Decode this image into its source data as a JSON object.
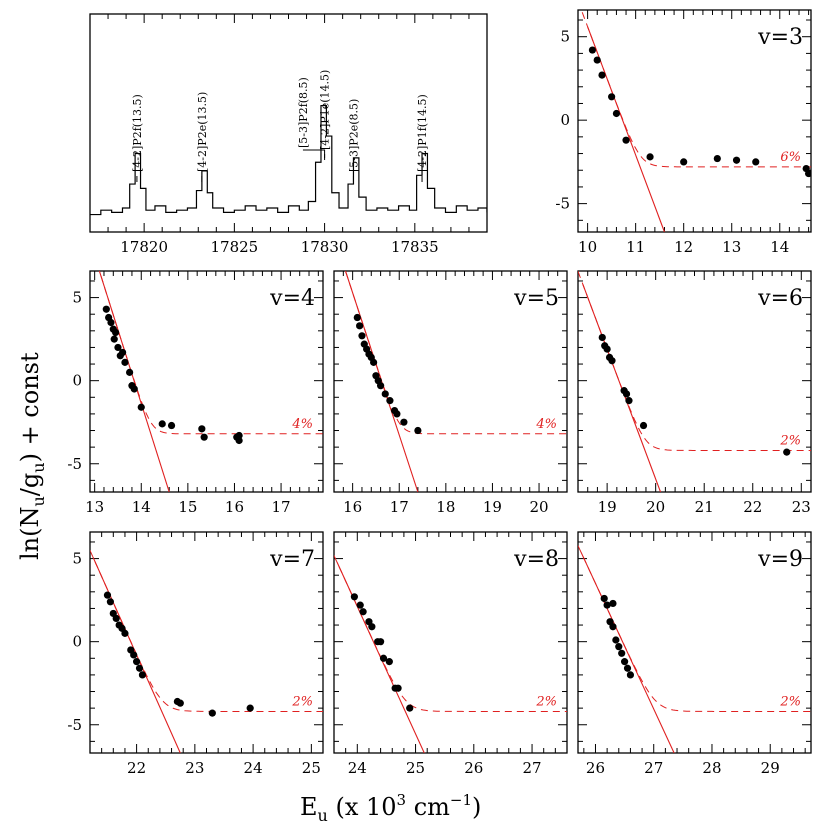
{
  "figure": {
    "xlabel": "E",
    "xlabel_sub": "u",
    "xlabel_rest": " (x 10",
    "xlabel_sup": "3",
    "xlabel_unit": " cm",
    "xlabel_unit_sup": "−1",
    "xlabel_close": ")",
    "ylabel_a": "ln(N",
    "ylabel_sub1": "u",
    "ylabel_b": "/g",
    "ylabel_sub2": "u",
    "ylabel_c": ") + const"
  },
  "chart_data": [
    {
      "type": "line",
      "panel": "spectrum",
      "xlim": [
        17817,
        17839
      ],
      "ylim": [
        0,
        1
      ],
      "xticks": [
        17820,
        17825,
        17830,
        17835
      ],
      "line_labels": [
        {
          "text": "[4-2]P2f(13.5)",
          "x": 17819.6
        },
        {
          "text": "[4-2]P2e(13.5)",
          "x": 17823.2
        },
        {
          "text": "[5-3]P2f(8.5)",
          "x": 17828.8
        },
        {
          "text": "[4-2]P1e(14.5)",
          "x": 17830.0
        },
        {
          "text": "[5-3]P2e(8.5)",
          "x": 17831.6
        },
        {
          "text": "[4-2]P1f(14.5)",
          "x": 17835.4
        }
      ],
      "spectrum_x": [
        17817,
        17817.6,
        17818.2,
        17818.8,
        17819.2,
        17819.5,
        17819.8,
        17820.1,
        17820.6,
        17821.2,
        17821.8,
        17822.4,
        17822.9,
        17823.2,
        17823.5,
        17823.8,
        17824.4,
        17825,
        17825.6,
        17826.2,
        17826.8,
        17827.4,
        17828,
        17828.6,
        17829.1,
        17829.5,
        17829.8,
        17830.1,
        17830.4,
        17830.8,
        17831.3,
        17831.6,
        17831.9,
        17832.3,
        17832.9,
        17833.5,
        17834.1,
        17834.7,
        17835.1,
        17835.4,
        17835.7,
        17836.1,
        17836.7,
        17837.3,
        17837.9,
        17838.5,
        17839
      ],
      "spectrum_y": [
        0.08,
        0.1,
        0.09,
        0.11,
        0.22,
        0.36,
        0.2,
        0.1,
        0.12,
        0.09,
        0.1,
        0.11,
        0.19,
        0.28,
        0.18,
        0.11,
        0.09,
        0.1,
        0.12,
        0.1,
        0.11,
        0.09,
        0.12,
        0.1,
        0.14,
        0.32,
        0.58,
        0.44,
        0.18,
        0.11,
        0.22,
        0.34,
        0.16,
        0.1,
        0.11,
        0.1,
        0.12,
        0.1,
        0.26,
        0.36,
        0.2,
        0.11,
        0.09,
        0.12,
        0.1,
        0.11,
        0.09
      ]
    },
    {
      "type": "scatter",
      "panel": "v3",
      "label": "v=3",
      "pct": "6%",
      "xlim": [
        9.8,
        14.65
      ],
      "ylim": [
        -6.7,
        6.6
      ],
      "xticks": [
        10,
        11,
        12,
        13,
        14
      ],
      "yticks": [
        -5,
        0,
        5
      ],
      "fit_line": [
        [
          10.0,
          5.6
        ],
        [
          11.6,
          -6.7
        ]
      ],
      "plateau": -2.8,
      "points": [
        [
          10.1,
          4.2
        ],
        [
          10.2,
          3.6
        ],
        [
          10.3,
          2.7
        ],
        [
          10.5,
          1.4
        ],
        [
          10.6,
          0.4
        ],
        [
          10.8,
          -1.2
        ],
        [
          11.3,
          -2.2
        ],
        [
          12.0,
          -2.5
        ],
        [
          12.7,
          -2.3
        ],
        [
          13.1,
          -2.4
        ],
        [
          13.5,
          -2.5
        ],
        [
          14.55,
          -2.9
        ],
        [
          14.6,
          -3.2
        ]
      ]
    },
    {
      "type": "scatter",
      "panel": "v4",
      "label": "v=4",
      "pct": "4%",
      "xlim": [
        12.9,
        17.9
      ],
      "ylim": [
        -6.7,
        6.6
      ],
      "xticks": [
        13,
        14,
        15,
        16,
        17
      ],
      "yticks": [
        -5,
        0,
        5
      ],
      "fit_line": [
        [
          13.0,
          7.5
        ],
        [
          14.6,
          -6.7
        ]
      ],
      "plateau": -3.2,
      "points": [
        [
          13.25,
          4.3
        ],
        [
          13.3,
          3.8
        ],
        [
          13.35,
          3.5
        ],
        [
          13.4,
          3.1
        ],
        [
          13.42,
          2.5
        ],
        [
          13.45,
          2.9
        ],
        [
          13.5,
          2.0
        ],
        [
          13.55,
          1.5
        ],
        [
          13.6,
          1.7
        ],
        [
          13.65,
          1.1
        ],
        [
          13.75,
          0.5
        ],
        [
          13.8,
          -0.3
        ],
        [
          13.85,
          -0.5
        ],
        [
          14.0,
          -1.6
        ],
        [
          14.45,
          -2.6
        ],
        [
          14.65,
          -2.7
        ],
        [
          15.3,
          -2.9
        ],
        [
          15.35,
          -3.4
        ],
        [
          16.05,
          -3.4
        ],
        [
          16.1,
          -3.3
        ],
        [
          16.1,
          -3.6
        ]
      ]
    },
    {
      "type": "scatter",
      "panel": "v5",
      "label": "v=5",
      "pct": "4%",
      "xlim": [
        15.6,
        20.6
      ],
      "ylim": [
        -6.7,
        6.6
      ],
      "xticks": [
        16,
        17,
        18,
        19,
        20
      ],
      "yticks": [
        -5,
        0,
        5
      ],
      "fit_line": [
        [
          15.8,
          7.0
        ],
        [
          17.4,
          -6.7
        ]
      ],
      "plateau": -3.2,
      "points": [
        [
          16.1,
          3.8
        ],
        [
          16.15,
          3.3
        ],
        [
          16.2,
          2.7
        ],
        [
          16.25,
          2.2
        ],
        [
          16.3,
          1.9
        ],
        [
          16.35,
          1.6
        ],
        [
          16.4,
          1.4
        ],
        [
          16.45,
          1.1
        ],
        [
          16.5,
          0.3
        ],
        [
          16.55,
          0.0
        ],
        [
          16.6,
          -0.3
        ],
        [
          16.7,
          -0.8
        ],
        [
          16.8,
          -1.2
        ],
        [
          16.9,
          -1.8
        ],
        [
          16.95,
          -2.0
        ],
        [
          17.1,
          -2.5
        ],
        [
          17.4,
          -3.0
        ]
      ]
    },
    {
      "type": "scatter",
      "panel": "v6",
      "label": "v=6",
      "pct": "2%",
      "xlim": [
        18.4,
        23.2
      ],
      "ylim": [
        -6.7,
        6.6
      ],
      "xticks": [
        19,
        20,
        21,
        22,
        23
      ],
      "yticks": [
        -5,
        0,
        5
      ],
      "fit_line": [
        [
          18.5,
          5.8
        ],
        [
          20.1,
          -6.7
        ]
      ],
      "plateau": -4.2,
      "points": [
        [
          18.9,
          2.6
        ],
        [
          18.95,
          2.1
        ],
        [
          19.0,
          1.9
        ],
        [
          19.05,
          1.4
        ],
        [
          19.1,
          1.2
        ],
        [
          19.35,
          -0.6
        ],
        [
          19.4,
          -0.8
        ],
        [
          19.45,
          -1.2
        ],
        [
          19.75,
          -2.7
        ],
        [
          22.7,
          -4.3
        ]
      ]
    },
    {
      "type": "scatter",
      "panel": "v7",
      "label": "v=7",
      "pct": "2%",
      "xlim": [
        21.2,
        25.2
      ],
      "ylim": [
        -6.7,
        6.6
      ],
      "xticks": [
        22,
        23,
        24,
        25
      ],
      "yticks": [
        -5,
        0,
        5
      ],
      "fit_line": [
        [
          21.25,
          5.1
        ],
        [
          22.75,
          -6.7
        ]
      ],
      "plateau": -4.2,
      "points": [
        [
          21.5,
          2.8
        ],
        [
          21.55,
          2.4
        ],
        [
          21.6,
          1.7
        ],
        [
          21.65,
          1.4
        ],
        [
          21.7,
          1.0
        ],
        [
          21.75,
          0.8
        ],
        [
          21.8,
          0.5
        ],
        [
          21.9,
          -0.5
        ],
        [
          21.95,
          -0.8
        ],
        [
          22.0,
          -1.2
        ],
        [
          22.05,
          -1.6
        ],
        [
          22.1,
          -2.0
        ],
        [
          22.7,
          -3.6
        ],
        [
          22.75,
          -3.7
        ],
        [
          23.3,
          -4.3
        ],
        [
          23.95,
          -4.0
        ]
      ]
    },
    {
      "type": "scatter",
      "panel": "v8",
      "label": "v=8",
      "pct": "2%",
      "xlim": [
        23.6,
        27.6
      ],
      "ylim": [
        -6.7,
        6.6
      ],
      "xticks": [
        24,
        25,
        26,
        27
      ],
      "yticks": [
        -5,
        0,
        5
      ],
      "fit_line": [
        [
          23.65,
          4.8
        ],
        [
          25.15,
          -6.7
        ]
      ],
      "plateau": -4.2,
      "points": [
        [
          23.95,
          2.7
        ],
        [
          24.05,
          2.2
        ],
        [
          24.1,
          1.8
        ],
        [
          24.2,
          1.2
        ],
        [
          24.25,
          0.9
        ],
        [
          24.35,
          0.0
        ],
        [
          24.4,
          0.0
        ],
        [
          24.45,
          -1.0
        ],
        [
          24.55,
          -1.2
        ],
        [
          24.65,
          -2.8
        ],
        [
          24.7,
          -2.8
        ],
        [
          24.9,
          -4.0
        ]
      ]
    },
    {
      "type": "scatter",
      "panel": "v9",
      "label": "v=9",
      "pct": "2%",
      "xlim": [
        25.7,
        29.7
      ],
      "ylim": [
        -6.7,
        6.6
      ],
      "xticks": [
        26,
        27,
        28,
        29
      ],
      "yticks": [
        -5,
        0,
        5
      ],
      "fit_line": [
        [
          25.75,
          5.4
        ],
        [
          27.35,
          -6.7
        ]
      ],
      "plateau": -4.2,
      "points": [
        [
          26.15,
          2.6
        ],
        [
          26.2,
          2.2
        ],
        [
          26.25,
          1.2
        ],
        [
          26.3,
          2.3
        ],
        [
          26.3,
          0.9
        ],
        [
          26.35,
          0.1
        ],
        [
          26.4,
          -0.3
        ],
        [
          26.45,
          -0.7
        ],
        [
          26.5,
          -1.2
        ],
        [
          26.55,
          -1.6
        ],
        [
          26.6,
          -2.0
        ]
      ]
    }
  ]
}
